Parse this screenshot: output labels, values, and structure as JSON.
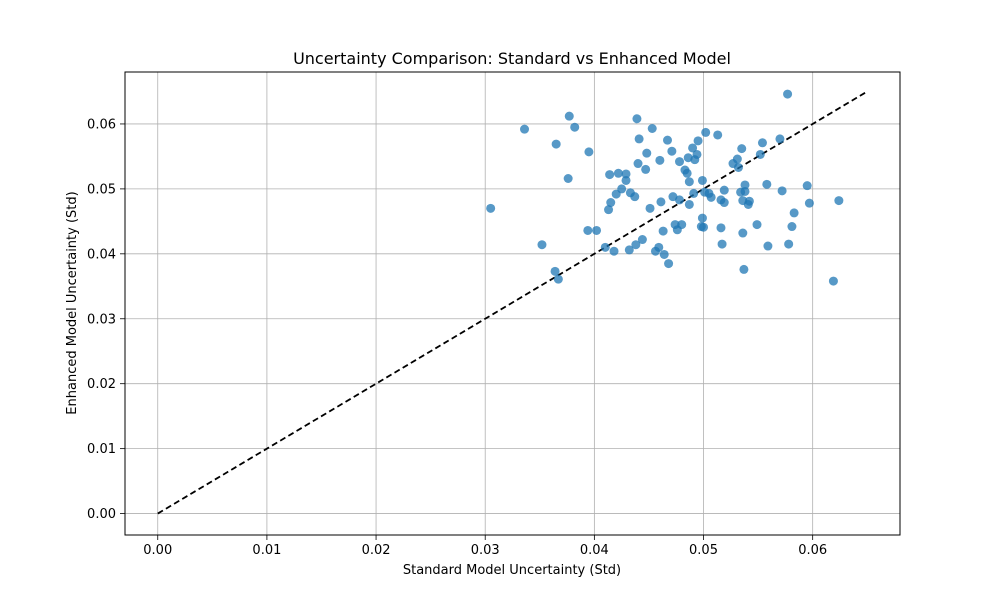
{
  "chart_data": {
    "type": "scatter",
    "title": "Uncertainty Comparison: Standard vs Enhanced Model",
    "xlabel": "Standard Model Uncertainty (Std)",
    "ylabel": "Enhanced Model Uncertainty (Std)",
    "xlim": [
      -0.003,
      0.068
    ],
    "ylim": [
      -0.0033,
      0.068
    ],
    "xticks": [
      0.0,
      0.01,
      0.02,
      0.03,
      0.04,
      0.05,
      0.06
    ],
    "yticks": [
      0.0,
      0.01,
      0.02,
      0.03,
      0.04,
      0.05,
      0.06
    ],
    "xtick_labels": [
      "0.00",
      "0.01",
      "0.02",
      "0.03",
      "0.04",
      "0.05",
      "0.06"
    ],
    "ytick_labels": [
      "0.00",
      "0.01",
      "0.02",
      "0.03",
      "0.04",
      "0.05",
      "0.06"
    ],
    "grid": true,
    "marker_color": "#1f77b4",
    "reference_line": {
      "style": "dashed",
      "color": "#000000",
      "from": [
        0.0,
        0.0
      ],
      "to": [
        0.0648,
        0.0648
      ]
    },
    "points": [
      [
        0.0305,
        0.047
      ],
      [
        0.0336,
        0.0592
      ],
      [
        0.0352,
        0.0414
      ],
      [
        0.0364,
        0.0373
      ],
      [
        0.0365,
        0.0569
      ],
      [
        0.0367,
        0.0361
      ],
      [
        0.0376,
        0.0516
      ],
      [
        0.0377,
        0.0612
      ],
      [
        0.0382,
        0.0595
      ],
      [
        0.0394,
        0.0436
      ],
      [
        0.0395,
        0.0557
      ],
      [
        0.0402,
        0.0436
      ],
      [
        0.041,
        0.041
      ],
      [
        0.0413,
        0.0468
      ],
      [
        0.0414,
        0.0522
      ],
      [
        0.0415,
        0.0479
      ],
      [
        0.0418,
        0.0404
      ],
      [
        0.042,
        0.0492
      ],
      [
        0.0422,
        0.0524
      ],
      [
        0.0425,
        0.05
      ],
      [
        0.0429,
        0.0513
      ],
      [
        0.0429,
        0.0523
      ],
      [
        0.0432,
        0.0406
      ],
      [
        0.0433,
        0.0494
      ],
      [
        0.0437,
        0.0488
      ],
      [
        0.0438,
        0.0414
      ],
      [
        0.0439,
        0.0608
      ],
      [
        0.044,
        0.0539
      ],
      [
        0.0441,
        0.0577
      ],
      [
        0.0444,
        0.0422
      ],
      [
        0.0447,
        0.053
      ],
      [
        0.0448,
        0.0555
      ],
      [
        0.0451,
        0.047
      ],
      [
        0.0453,
        0.0593
      ],
      [
        0.0456,
        0.0404
      ],
      [
        0.0459,
        0.041
      ],
      [
        0.046,
        0.0544
      ],
      [
        0.0461,
        0.048
      ],
      [
        0.0463,
        0.0435
      ],
      [
        0.0464,
        0.0399
      ],
      [
        0.0467,
        0.0575
      ],
      [
        0.0468,
        0.0385
      ],
      [
        0.0471,
        0.0558
      ],
      [
        0.0472,
        0.0488
      ],
      [
        0.0474,
        0.0445
      ],
      [
        0.0476,
        0.0437
      ],
      [
        0.0478,
        0.0542
      ],
      [
        0.0478,
        0.0483
      ],
      [
        0.048,
        0.0445
      ],
      [
        0.0483,
        0.0529
      ],
      [
        0.0485,
        0.0524
      ],
      [
        0.0486,
        0.0548
      ],
      [
        0.0487,
        0.0476
      ],
      [
        0.0487,
        0.0511
      ],
      [
        0.049,
        0.0563
      ],
      [
        0.0491,
        0.0493
      ],
      [
        0.0492,
        0.0545
      ],
      [
        0.0494,
        0.0553
      ],
      [
        0.0495,
        0.0574
      ],
      [
        0.0498,
        0.0442
      ],
      [
        0.0499,
        0.0455
      ],
      [
        0.0499,
        0.0513
      ],
      [
        0.05,
        0.0441
      ],
      [
        0.0501,
        0.0495
      ],
      [
        0.0502,
        0.0587
      ],
      [
        0.0505,
        0.0493
      ],
      [
        0.0507,
        0.0487
      ],
      [
        0.0513,
        0.0583
      ],
      [
        0.0516,
        0.0483
      ],
      [
        0.0516,
        0.044
      ],
      [
        0.0517,
        0.0415
      ],
      [
        0.0519,
        0.0498
      ],
      [
        0.0519,
        0.0479
      ],
      [
        0.0527,
        0.0539
      ],
      [
        0.0531,
        0.0546
      ],
      [
        0.0532,
        0.0533
      ],
      [
        0.0534,
        0.0495
      ],
      [
        0.0535,
        0.0562
      ],
      [
        0.0536,
        0.0482
      ],
      [
        0.0536,
        0.0432
      ],
      [
        0.0537,
        0.0376
      ],
      [
        0.0538,
        0.0506
      ],
      [
        0.0538,
        0.0496
      ],
      [
        0.0541,
        0.0476
      ],
      [
        0.0542,
        0.0481
      ],
      [
        0.0549,
        0.0445
      ],
      [
        0.0552,
        0.0553
      ],
      [
        0.0554,
        0.0571
      ],
      [
        0.0558,
        0.0507
      ],
      [
        0.0559,
        0.0412
      ],
      [
        0.057,
        0.0577
      ],
      [
        0.0572,
        0.0497
      ],
      [
        0.0577,
        0.0646
      ],
      [
        0.0578,
        0.0415
      ],
      [
        0.0581,
        0.0442
      ],
      [
        0.0583,
        0.0463
      ],
      [
        0.0595,
        0.0505
      ],
      [
        0.0597,
        0.0478
      ],
      [
        0.0619,
        0.0358
      ],
      [
        0.0624,
        0.0482
      ]
    ]
  }
}
